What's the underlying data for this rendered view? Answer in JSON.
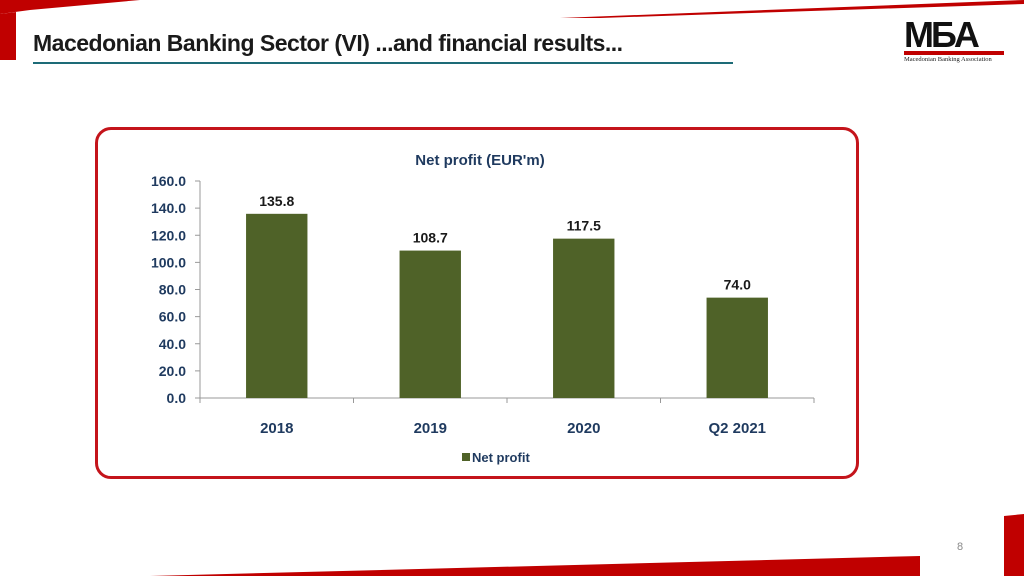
{
  "slide": {
    "title": "Macedonian Banking Sector (VI)  ...and financial results...",
    "page_number": "8",
    "colors": {
      "accent_red": "#c00000",
      "frame_red": "#c4141b",
      "bar_green": "#4f6228",
      "underline_teal": "#1d6b77"
    }
  },
  "logo": {
    "mark": "MБA",
    "subtitle": "Macedonian Banking Association"
  },
  "chart_data": {
    "type": "bar",
    "title": "Net profit (EUR'm)",
    "categories": [
      "2018",
      "2019",
      "2020",
      "Q2 2021"
    ],
    "series": [
      {
        "name": "Net profit",
        "values": [
          135.8,
          108.7,
          117.5,
          74.0
        ],
        "labels": [
          "135.8",
          "108.7",
          "117.5",
          "74.0"
        ],
        "color": "#4f6228"
      }
    ],
    "ylim": [
      0,
      160
    ],
    "yticks": [
      "0.0",
      "20.0",
      "40.0",
      "60.0",
      "80.0",
      "100.0",
      "120.0",
      "140.0",
      "160.0"
    ],
    "xlabel": "",
    "ylabel": "",
    "grid": false,
    "legend": "bottom"
  }
}
